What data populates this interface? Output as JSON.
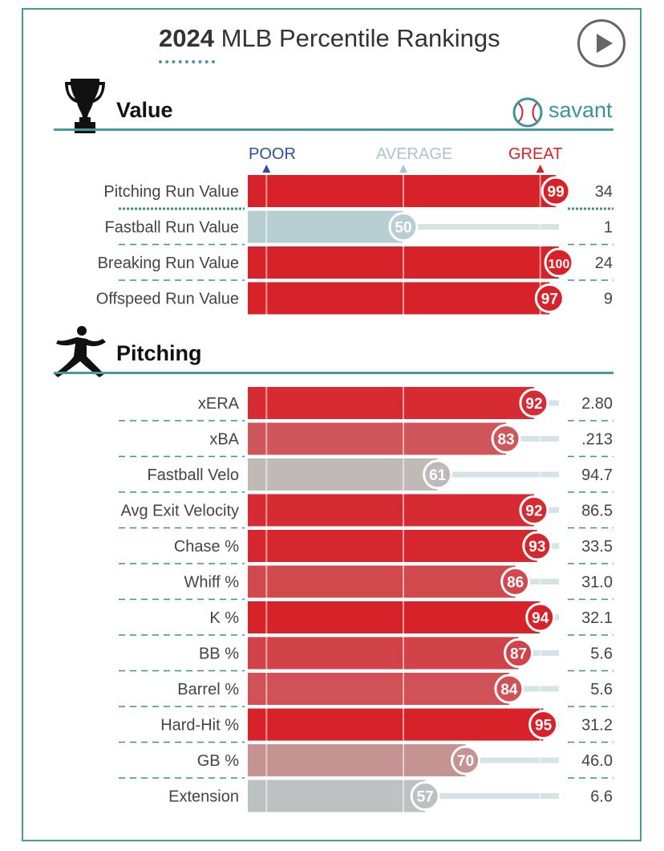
{
  "title": {
    "year": "2024",
    "text": "MLB Percentile Rankings"
  },
  "brand": {
    "name": "savant"
  },
  "scale": {
    "poor": "POOR",
    "average": "AVERAGE",
    "great": "GREAT"
  },
  "colors": {
    "frame": "#4a9a9c",
    "great": "#d7222a",
    "average": "#b7cfd3",
    "poor": "#2b4fa3",
    "average_label": "#a8c6c9"
  },
  "icons": {
    "value": "trophy-icon",
    "pitching": "pitcher-icon",
    "brand": "baseball-icon",
    "play": "play-icon"
  },
  "chart_data": [
    {
      "type": "bar",
      "section": "Value",
      "xlim": [
        0,
        100
      ],
      "categories": [
        "Pitching Run Value",
        "Fastball Run Value",
        "Breaking Run Value",
        "Offspeed Run Value"
      ],
      "percentiles": [
        99,
        50,
        100,
        97
      ],
      "stat_values": [
        "34",
        "1",
        "24",
        "9"
      ]
    },
    {
      "type": "bar",
      "section": "Pitching",
      "xlim": [
        0,
        100
      ],
      "categories": [
        "xERA",
        "xBA",
        "Fastball Velo",
        "Avg Exit Velocity",
        "Chase %",
        "Whiff %",
        "K %",
        "BB %",
        "Barrel %",
        "Hard-Hit %",
        "GB %",
        "Extension"
      ],
      "percentiles": [
        92,
        83,
        61,
        92,
        93,
        86,
        94,
        87,
        84,
        95,
        70,
        57
      ],
      "stat_values": [
        "2.80",
        ".213",
        "94.7",
        "86.5",
        "33.5",
        "31.0",
        "32.1",
        "5.6",
        "5.6",
        "31.2",
        "46.0",
        "6.6"
      ]
    }
  ]
}
